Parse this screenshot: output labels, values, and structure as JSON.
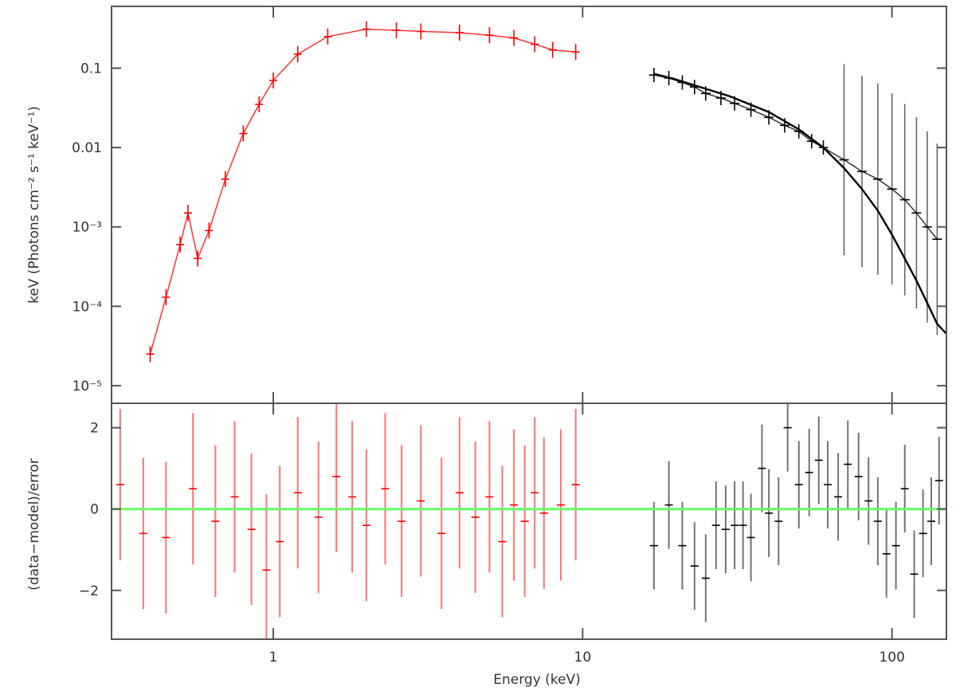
{
  "chart_data": [
    {
      "type": "scatter",
      "panel": "top",
      "xlabel": "",
      "ylabel": "keV (Photons cm⁻² s⁻¹ keV⁻¹)",
      "xscale": "log",
      "yscale": "log",
      "xlim": [
        0.3,
        150
      ],
      "ylim": [
        6e-06,
        0.6
      ],
      "y_tick_labels": [
        "10⁻⁵",
        "10⁻⁴",
        "10⁻³",
        "0.01",
        "0.1"
      ],
      "y_tick_values": [
        1e-05,
        0.0001,
        0.001,
        0.01,
        0.1
      ],
      "grid": false,
      "series": [
        {
          "color": "#ff0000",
          "x": [
            0.4,
            0.45,
            0.5,
            0.53,
            0.57,
            0.62,
            0.7,
            0.8,
            0.9,
            1.0,
            1.2,
            1.5,
            2.0,
            2.5,
            3.0,
            4.0,
            5.0,
            6.0,
            7.0,
            8.0,
            9.5
          ],
          "y": [
            2.5e-05,
            0.00013,
            0.0006,
            0.0015,
            0.0004,
            0.0009,
            0.004,
            0.015,
            0.035,
            0.07,
            0.15,
            0.25,
            0.31,
            0.3,
            0.29,
            0.28,
            0.26,
            0.24,
            0.2,
            0.17,
            0.16
          ]
        },
        {
          "color": "#000000",
          "x": [
            17,
            19,
            21,
            23,
            25,
            28,
            31,
            35,
            40,
            45,
            50,
            55,
            60,
            70,
            80,
            90,
            100,
            110,
            120,
            130,
            140
          ],
          "y": [
            0.082,
            0.075,
            0.066,
            0.058,
            0.048,
            0.042,
            0.036,
            0.03,
            0.024,
            0.019,
            0.016,
            0.012,
            0.01,
            0.007,
            0.005,
            0.004,
            0.003,
            0.0022,
            0.0015,
            0.001,
            0.0007
          ]
        }
      ],
      "model": {
        "color": "#000000",
        "x": [
          17,
          20,
          25,
          30,
          40,
          50,
          60,
          70,
          80,
          90,
          100,
          110,
          120,
          130,
          140,
          150
        ],
        "y": [
          0.085,
          0.072,
          0.055,
          0.044,
          0.028,
          0.017,
          0.01,
          0.0055,
          0.003,
          0.0016,
          0.0008,
          0.0004,
          0.00021,
          0.00011,
          6e-05,
          4.5e-05
        ]
      }
    },
    {
      "type": "scatter",
      "panel": "bottom",
      "xlabel": "Energy (keV)",
      "ylabel": "(data−model)/error",
      "xscale": "log",
      "xlim": [
        0.3,
        150
      ],
      "ylim": [
        -3.2,
        2.6
      ],
      "x_tick_labels": [
        "1",
        "10",
        "100"
      ],
      "x_tick_values": [
        1,
        10,
        100
      ],
      "y_tick_labels": [
        "−2",
        "0",
        "2"
      ],
      "y_tick_values": [
        -2,
        0,
        2
      ],
      "zero_line_color": "#66ff66",
      "grid": false,
      "series": [
        {
          "color": "#ff0000",
          "x": [
            0.32,
            0.38,
            0.45,
            0.55,
            0.65,
            0.75,
            0.85,
            0.95,
            1.05,
            1.2,
            1.4,
            1.6,
            1.8,
            2.0,
            2.3,
            2.6,
            3.0,
            3.5,
            4.0,
            4.5,
            5.0,
            5.5,
            6.0,
            6.5,
            7.0,
            7.5,
            8.5,
            9.5
          ],
          "y": [
            0.6,
            -0.6,
            -0.7,
            0.5,
            -0.3,
            0.3,
            -0.5,
            -1.5,
            -0.8,
            0.4,
            -0.2,
            0.8,
            0.3,
            -0.4,
            0.5,
            -0.3,
            0.2,
            -0.6,
            0.4,
            -0.2,
            0.3,
            -0.8,
            0.1,
            -0.3,
            0.4,
            -0.1,
            0.1,
            0.6
          ]
        },
        {
          "color": "#000000",
          "x": [
            17,
            19,
            21,
            23,
            25,
            27,
            29,
            31,
            33,
            35,
            38,
            40,
            43,
            46,
            50,
            54,
            58,
            62,
            67,
            72,
            78,
            84,
            90,
            96,
            103,
            110,
            118,
            126,
            134,
            142
          ],
          "y": [
            -0.9,
            0.1,
            -0.9,
            -1.4,
            -1.7,
            -0.4,
            -0.5,
            -0.4,
            -0.4,
            -0.7,
            1.0,
            -0.1,
            -0.3,
            2.0,
            0.6,
            0.9,
            1.2,
            0.6,
            0.3,
            1.1,
            0.8,
            0.2,
            -0.3,
            -1.1,
            -0.9,
            0.5,
            -1.6,
            -0.6,
            -0.3,
            0.7
          ]
        }
      ]
    }
  ]
}
